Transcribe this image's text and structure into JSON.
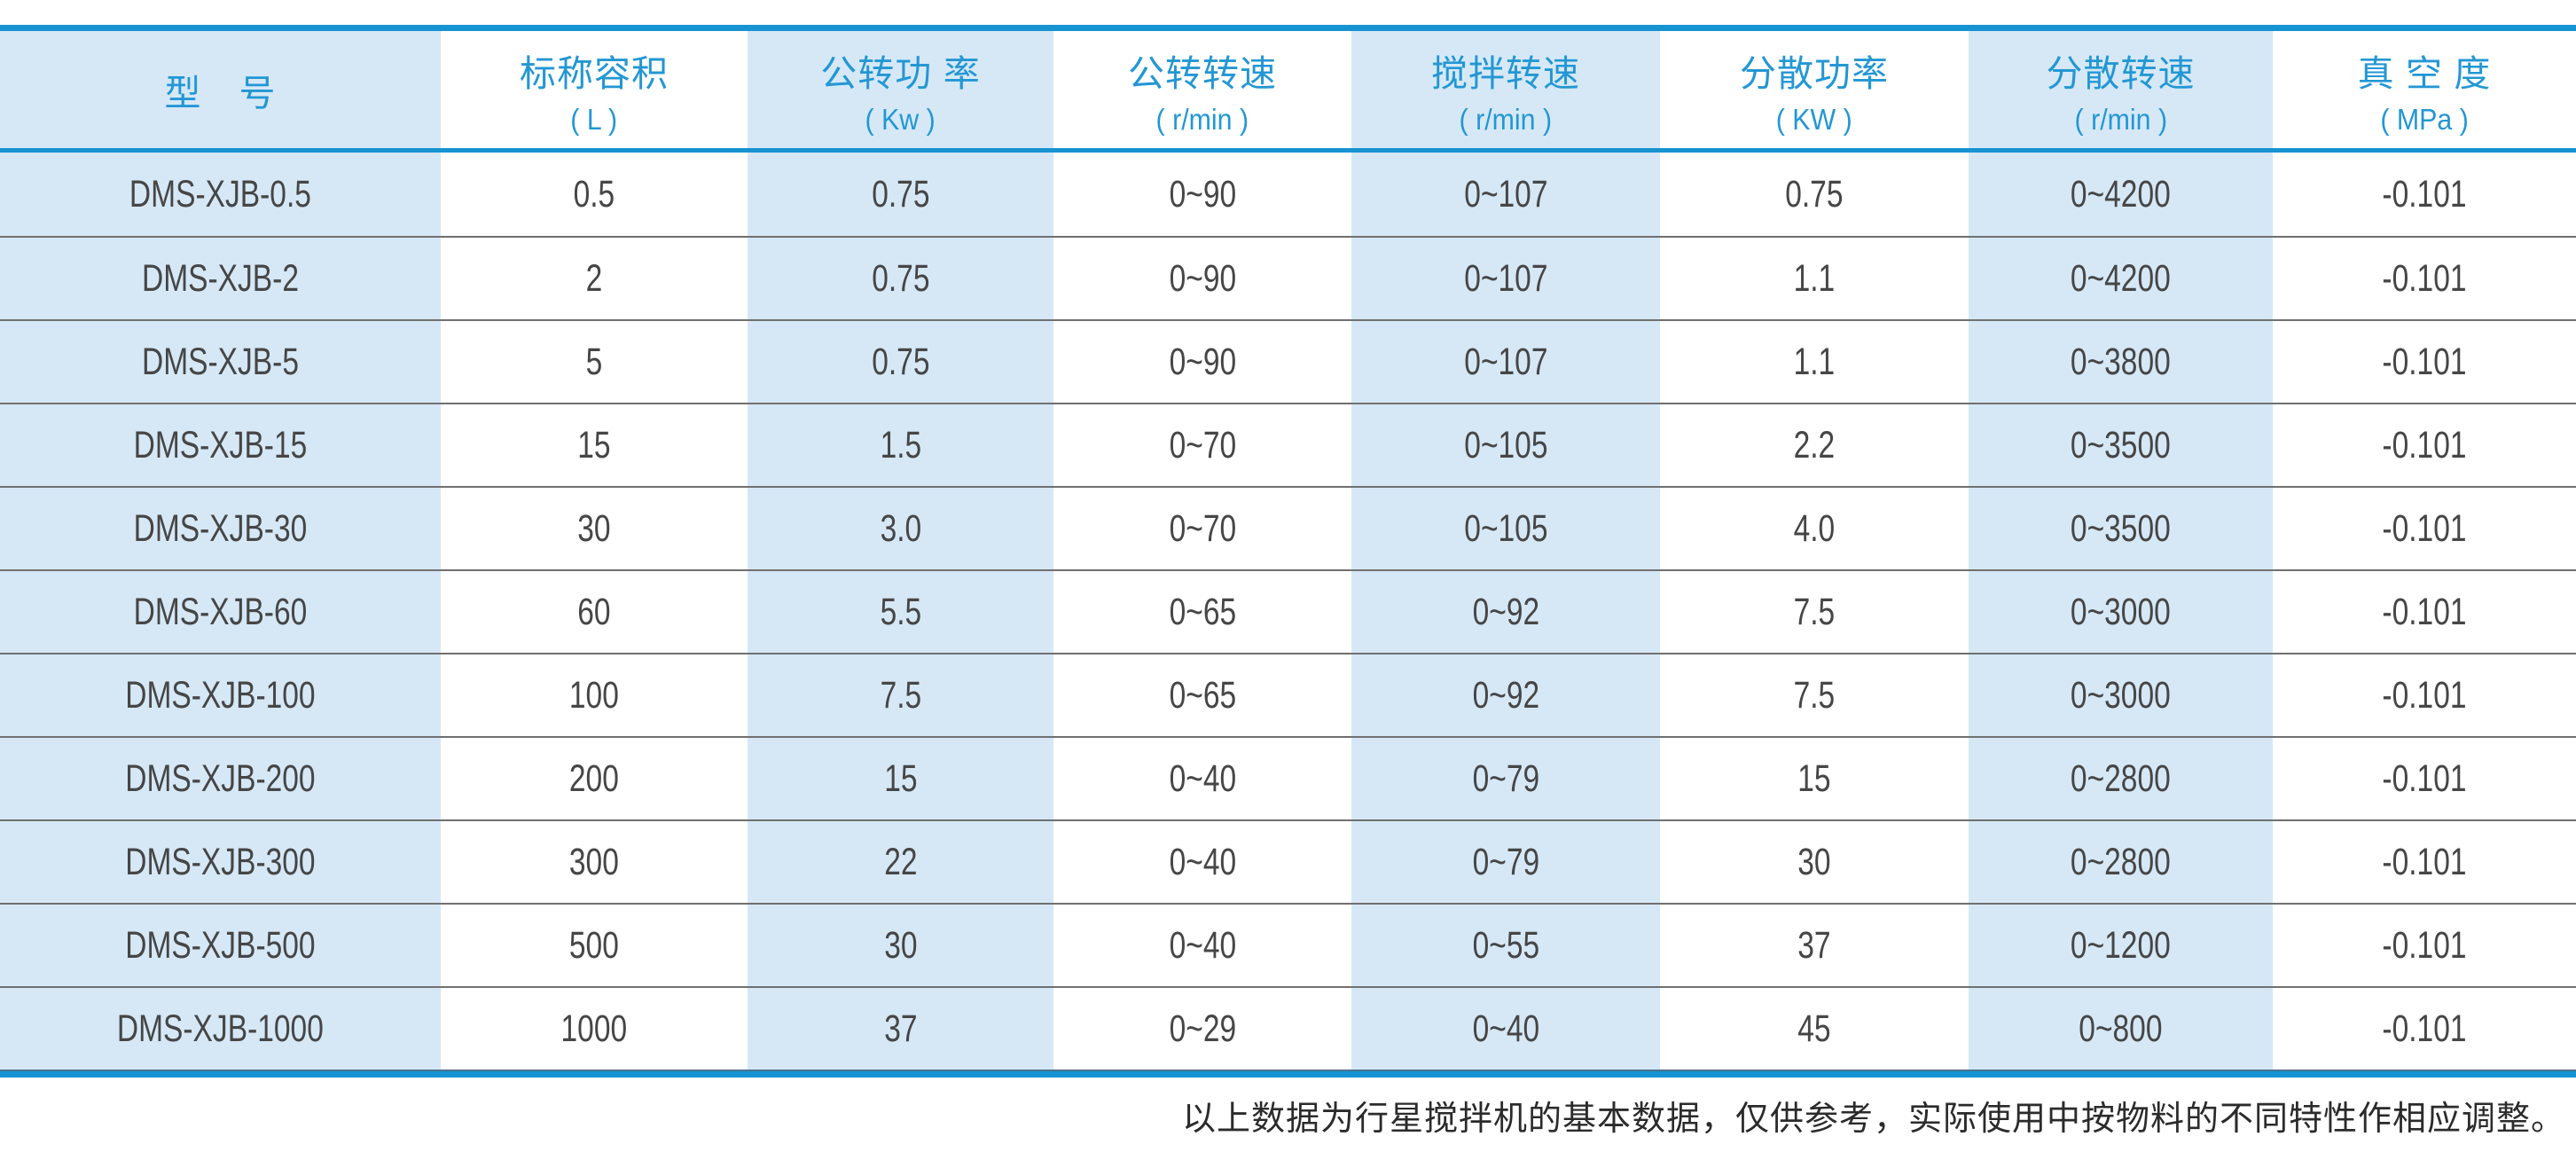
{
  "colors": {
    "accent": "#1793d1",
    "header_text": "#2397d4",
    "cell_blue": "#d6e8f6",
    "row_line": "#707070",
    "body_text": "#464646",
    "footer_text": "#2b2b2b"
  },
  "table": {
    "columns": [
      {
        "title": "型　号",
        "unit": ""
      },
      {
        "title": "标称容积",
        "unit": "( L )"
      },
      {
        "title": "公转功 率",
        "unit": "( Kw )"
      },
      {
        "title": "公转转速",
        "unit": "( r/min )"
      },
      {
        "title": "搅拌转速",
        "unit": "( r/min )"
      },
      {
        "title": "分散功率",
        "unit": "( KW )"
      },
      {
        "title": "分散转速",
        "unit": "( r/min )"
      },
      {
        "title": "真 空 度",
        "unit": "( MPa )"
      }
    ],
    "rows": [
      [
        "DMS-XJB-0.5",
        "0.5",
        "0.75",
        "0~90",
        "0~107",
        "0.75",
        "0~4200",
        "-0.101"
      ],
      [
        "DMS-XJB-2",
        "2",
        "0.75",
        "0~90",
        "0~107",
        "1.1",
        "0~4200",
        "-0.101"
      ],
      [
        "DMS-XJB-5",
        "5",
        "0.75",
        "0~90",
        "0~107",
        "1.1",
        "0~3800",
        "-0.101"
      ],
      [
        "DMS-XJB-15",
        "15",
        "1.5",
        "0~70",
        "0~105",
        "2.2",
        "0~3500",
        "-0.101"
      ],
      [
        "DMS-XJB-30",
        "30",
        "3.0",
        "0~70",
        "0~105",
        "4.0",
        "0~3500",
        "-0.101"
      ],
      [
        "DMS-XJB-60",
        "60",
        "5.5",
        "0~65",
        "0~92",
        "7.5",
        "0~3000",
        "-0.101"
      ],
      [
        "DMS-XJB-100",
        "100",
        "7.5",
        "0~65",
        "0~92",
        "7.5",
        "0~3000",
        "-0.101"
      ],
      [
        "DMS-XJB-200",
        "200",
        "15",
        "0~40",
        "0~79",
        "15",
        "0~2800",
        "-0.101"
      ],
      [
        "DMS-XJB-300",
        "300",
        "22",
        "0~40",
        "0~79",
        "30",
        "0~2800",
        "-0.101"
      ],
      [
        "DMS-XJB-500",
        "500",
        "30",
        "0~40",
        "0~55",
        "37",
        "0~1200",
        "-0.101"
      ],
      [
        "DMS-XJB-1000",
        "1000",
        "37",
        "0~29",
        "0~40",
        "45",
        "0~800",
        "-0.101"
      ]
    ]
  },
  "footer": {
    "note": "以上数据为行星搅拌机的基本数据，仅供参考，实际使用中按物料的不同特性作相应调整。"
  }
}
